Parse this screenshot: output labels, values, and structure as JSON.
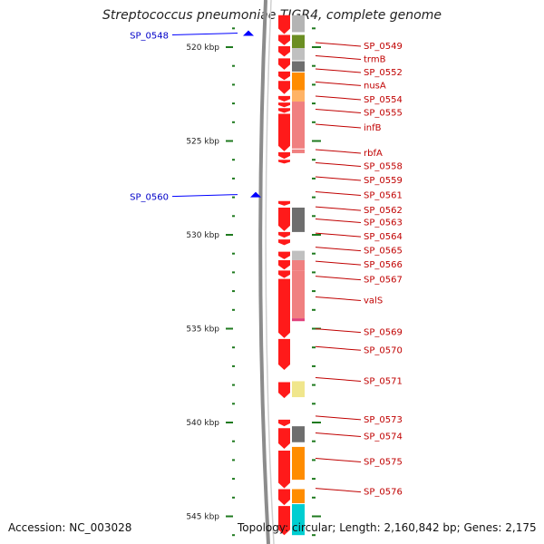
{
  "header": {
    "title": "Streptococcus pneumoniae TIGR4, complete genome"
  },
  "footer": {
    "accession": "Accession: NC_003028",
    "topology": "Topology: circular; Length: 2,160,842 bp; Genes: 2,175"
  },
  "colors": {
    "gene_forward": "#ff1a1a",
    "gene_highlight": "#ff8080",
    "backbone": "#8c8c8c",
    "scale": "#1f7a1f",
    "gene_label": "#c00000",
    "marker_label": "#0000c8",
    "marker": "#0000ff"
  },
  "scale": {
    "unit": "kbp",
    "major_ticks": [
      {
        "kbp": 520,
        "label": "520 kbp"
      },
      {
        "kbp": 525,
        "label": "525 kbp"
      },
      {
        "kbp": 530,
        "label": "530 kbp"
      },
      {
        "kbp": 535,
        "label": "535 kbp"
      },
      {
        "kbp": 540,
        "label": "540 kbp"
      },
      {
        "kbp": 545,
        "label": "545 kbp"
      }
    ]
  },
  "markers": [
    {
      "label": "SP_0548",
      "kbp": 519.35
    },
    {
      "label": "SP_0560",
      "kbp": 527.95
    }
  ],
  "gene_labels": [
    {
      "label": "SP_0549",
      "kbp": 519.95
    },
    {
      "label": "trmB",
      "kbp": 520.65
    },
    {
      "label": "SP_0552",
      "kbp": 521.35
    },
    {
      "label": "nusA",
      "kbp": 522.05
    },
    {
      "label": "SP_0554",
      "kbp": 522.8
    },
    {
      "label": "SP_0555",
      "kbp": 523.5
    },
    {
      "label": "infB",
      "kbp": 524.3
    },
    {
      "label": "rbfA",
      "kbp": 525.65
    },
    {
      "label": "SP_0558",
      "kbp": 526.35
    },
    {
      "label": "SP_0559",
      "kbp": 527.1
    },
    {
      "label": "SP_0561",
      "kbp": 527.9
    },
    {
      "label": "SP_0562",
      "kbp": 528.7
    },
    {
      "label": "SP_0563",
      "kbp": 529.35
    },
    {
      "label": "SP_0564",
      "kbp": 530.1
    },
    {
      "label": "SP_0565",
      "kbp": 530.85
    },
    {
      "label": "SP_0566",
      "kbp": 531.6
    },
    {
      "label": "SP_0567",
      "kbp": 532.4
    },
    {
      "label": "valS",
      "kbp": 533.5
    },
    {
      "label": "SP_0569",
      "kbp": 535.2
    },
    {
      "label": "SP_0570",
      "kbp": 536.15
    },
    {
      "label": "SP_0571",
      "kbp": 537.8
    },
    {
      "label": "SP_0573",
      "kbp": 539.85
    },
    {
      "label": "SP_0574",
      "kbp": 540.75
    },
    {
      "label": "SP_0575",
      "kbp": 542.1
    },
    {
      "label": "SP_0576",
      "kbp": 543.7
    }
  ],
  "genes": [
    {
      "start": 518.3,
      "end": 519.3
    },
    {
      "start": 519.35,
      "end": 519.9
    },
    {
      "start": 519.95,
      "end": 520.5
    },
    {
      "start": 520.6,
      "end": 521.2
    },
    {
      "start": 521.3,
      "end": 521.75
    },
    {
      "start": 521.8,
      "end": 522.5
    },
    {
      "start": 522.6,
      "end": 522.9
    },
    {
      "start": 522.95,
      "end": 523.2
    },
    {
      "start": 523.25,
      "end": 523.5
    },
    {
      "start": 523.55,
      "end": 525.55
    },
    {
      "start": 525.6,
      "end": 525.95
    },
    {
      "start": 526.0,
      "end": 526.2
    },
    {
      "start": 528.2,
      "end": 528.45
    },
    {
      "start": 528.55,
      "end": 529.8
    },
    {
      "start": 529.85,
      "end": 530.15
    },
    {
      "start": 530.25,
      "end": 530.55
    },
    {
      "start": 530.9,
      "end": 531.3
    },
    {
      "start": 531.35,
      "end": 531.85
    },
    {
      "start": 531.9,
      "end": 532.3
    },
    {
      "start": 532.35,
      "end": 535.5
    },
    {
      "start": 535.55,
      "end": 537.2
    },
    {
      "start": 537.85,
      "end": 538.7
    },
    {
      "start": 539.85,
      "end": 540.2
    },
    {
      "start": 540.3,
      "end": 541.4
    },
    {
      "start": 541.5,
      "end": 543.5
    },
    {
      "start": 543.55,
      "end": 544.4
    },
    {
      "start": 544.45,
      "end": 546.0
    }
  ],
  "highlights": [
    {
      "start": 518.3,
      "end": 519.2,
      "color": "#b4b4b4"
    },
    {
      "start": 519.35,
      "end": 520.05,
      "color": "#6b8e23"
    },
    {
      "start": 520.05,
      "end": 520.7,
      "color": "#c0c0c0"
    },
    {
      "start": 520.75,
      "end": 521.3,
      "color": "#6e6e6e"
    },
    {
      "start": 521.35,
      "end": 522.3,
      "color": "#ff8c00"
    },
    {
      "start": 522.3,
      "end": 522.9,
      "color": "#ffb366"
    },
    {
      "start": 522.9,
      "end": 525.4,
      "color": "#f08080"
    },
    {
      "start": 525.45,
      "end": 525.65,
      "color": "#f08080"
    },
    {
      "start": 528.55,
      "end": 529.85,
      "color": "#6e6e6e"
    },
    {
      "start": 530.85,
      "end": 531.35,
      "color": "#c0c0c0"
    },
    {
      "start": 531.35,
      "end": 531.9,
      "color": "#f08080"
    },
    {
      "start": 531.9,
      "end": 534.45,
      "color": "#f08080"
    },
    {
      "start": 534.45,
      "end": 534.6,
      "color": "#e0407a"
    },
    {
      "start": 537.8,
      "end": 538.65,
      "color": "#f0e68c"
    },
    {
      "start": 540.2,
      "end": 541.05,
      "color": "#6e6e6e"
    },
    {
      "start": 541.3,
      "end": 543.05,
      "color": "#ff8c00"
    },
    {
      "start": 543.55,
      "end": 544.3,
      "color": "#ff8c00"
    },
    {
      "start": 544.35,
      "end": 546.0,
      "color": "#00ced1"
    }
  ]
}
